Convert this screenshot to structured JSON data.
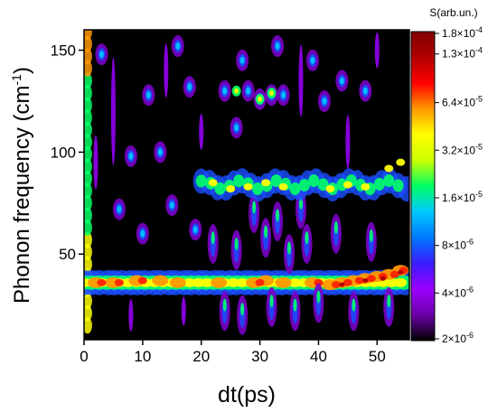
{
  "chart_data": {
    "type": "heatmap",
    "title": "",
    "xlabel": "dt(ps)",
    "ylabel_main": "Phonon frequency (cm",
    "ylabel_sup": "-1",
    "ylabel_close": ")",
    "xlim": [
      0,
      55.5
    ],
    "ylim": [
      8,
      160
    ],
    "xticks": [
      0,
      10,
      20,
      30,
      40,
      50
    ],
    "yticks": [
      50,
      100,
      150
    ],
    "colorbar": {
      "title": "S(arb.un.)",
      "scale": "log",
      "range": [
        2e-06,
        0.00018
      ],
      "tick_values": [
        2e-06,
        4e-06,
        8e-06,
        1.6e-05,
        3.2e-05,
        6.4e-05,
        0.00013,
        0.00018
      ],
      "tick_labels": [
        {
          "m": "2×10",
          "e": "-6"
        },
        {
          "m": "4×10",
          "e": "-6"
        },
        {
          "m": "8×10",
          "e": "-6"
        },
        {
          "m": "1.6×10",
          "e": "-5"
        },
        {
          "m": "3.2×10",
          "e": "-5"
        },
        {
          "m": "6.4×10",
          "e": "-5"
        },
        {
          "m": "1.3×10",
          "e": "-4"
        },
        {
          "m": "1.8×10",
          "e": "-4"
        }
      ],
      "colormap": [
        "#000000",
        "#6a00a8",
        "#9b00ff",
        "#3c1cff",
        "#0078ff",
        "#00c8ff",
        "#00ff66",
        "#ccff00",
        "#ffff00",
        "#ff9900",
        "#ff0000",
        "#b30000",
        "#800000"
      ]
    },
    "features": [
      {
        "name": "low-frequency band",
        "x_range": [
          0,
          55
        ],
        "y_center": 36,
        "level": "high"
      },
      {
        "name": "mid-frequency band",
        "x_range": [
          20,
          55
        ],
        "y_center": 84,
        "level": "medium"
      },
      {
        "name": "high-frequency spots",
        "x_range": [
          23,
          35
        ],
        "y_center": 125,
        "level": "medium"
      }
    ]
  }
}
